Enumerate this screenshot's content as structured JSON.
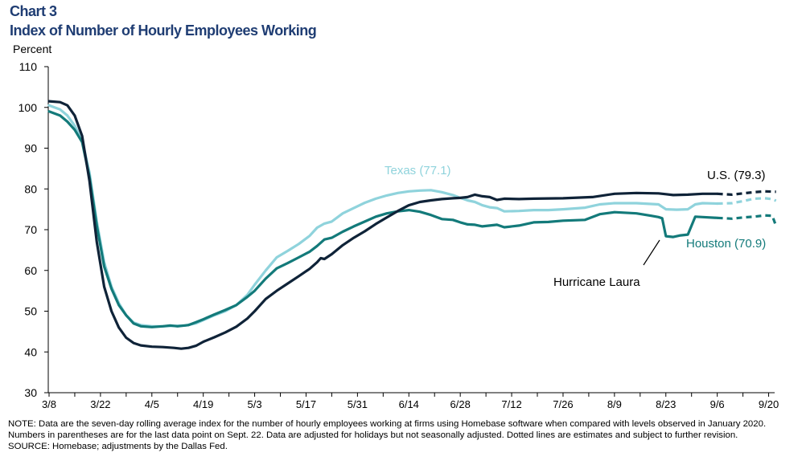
{
  "header": {
    "chart_number": "Chart 3",
    "title": "Index of Number of Hourly Employees Working"
  },
  "colors": {
    "us": "#0f2338",
    "texas": "#8fd3dc",
    "houston": "#137a7a",
    "title": "#1f3d73"
  },
  "footer": {
    "note": "NOTE: Data are the seven-day rolling average  index for the number of hourly employees working at firms using Homebase software when compared with levels observed  in January 2020. Numbers in parentheses are for the last data point on Sept. 22. Data are adjusted for holidays but not seasonally adjusted. Dotted lines are estimates and subject to further  revision.",
    "source": "SOURCE: Homebase;  adjustments by the Dallas Fed."
  },
  "chart_data": {
    "type": "line",
    "title": "Index of Number of Hourly Employees Working",
    "ylabel": "Percent",
    "xlabel": "",
    "ylim": [
      30,
      110
    ],
    "yticks": [
      30,
      40,
      50,
      60,
      70,
      80,
      90,
      100,
      110
    ],
    "x_unit": "day index (0 = 3/8)",
    "xlim": [
      0,
      199
    ],
    "x_tick_labels": [
      "3/8",
      "3/22",
      "4/5",
      "4/19",
      "5/3",
      "5/17",
      "5/31",
      "6/14",
      "6/28",
      "7/12",
      "7/26",
      "8/9",
      "8/23",
      "9/6",
      "9/20"
    ],
    "x_tick_positions": [
      0,
      14,
      28,
      42,
      56,
      70,
      84,
      98,
      112,
      126,
      140,
      154,
      168,
      182,
      196
    ],
    "grid": false,
    "estimate_start_day": 182,
    "annotations": {
      "texas_label": "Texas (77.1)",
      "us_label": "U.S. (79.3)",
      "houston_label": "Houston (70.9)",
      "hurricane_label": "Hurricane Laura",
      "hurricane_day": 168
    },
    "series": [
      {
        "name": "U.S.",
        "label": "U.S. (79.3)",
        "last_value": 79.3,
        "points": [
          [
            0,
            101.5
          ],
          [
            3,
            101.3
          ],
          [
            5,
            100.5
          ],
          [
            7,
            98
          ],
          [
            9,
            93
          ],
          [
            11,
            82
          ],
          [
            13,
            67
          ],
          [
            15,
            56
          ],
          [
            17,
            50
          ],
          [
            19,
            46
          ],
          [
            21,
            43.5
          ],
          [
            23,
            42.2
          ],
          [
            25,
            41.6
          ],
          [
            28,
            41.3
          ],
          [
            31,
            41.2
          ],
          [
            34,
            41.0
          ],
          [
            36,
            40.8
          ],
          [
            38,
            41.0
          ],
          [
            40,
            41.5
          ],
          [
            42,
            42.5
          ],
          [
            45,
            43.6
          ],
          [
            48,
            44.8
          ],
          [
            51,
            46.2
          ],
          [
            54,
            48.2
          ],
          [
            56,
            50
          ],
          [
            59,
            53
          ],
          [
            62,
            55
          ],
          [
            65,
            56.8
          ],
          [
            68,
            58.6
          ],
          [
            71,
            60.4
          ],
          [
            73,
            62.0
          ],
          [
            74,
            63.0
          ],
          [
            75,
            62.8
          ],
          [
            77,
            64.0
          ],
          [
            80,
            66.2
          ],
          [
            83,
            68.0
          ],
          [
            86,
            69.6
          ],
          [
            89,
            71.4
          ],
          [
            92,
            73.0
          ],
          [
            95,
            74.6
          ],
          [
            98,
            76.0
          ],
          [
            101,
            76.8
          ],
          [
            104,
            77.2
          ],
          [
            107,
            77.5
          ],
          [
            110,
            77.7
          ],
          [
            112,
            77.8
          ],
          [
            114,
            78.0
          ],
          [
            116,
            78.6
          ],
          [
            118,
            78.2
          ],
          [
            120,
            78.0
          ],
          [
            122,
            77.3
          ],
          [
            124,
            77.6
          ],
          [
            128,
            77.5
          ],
          [
            132,
            77.6
          ],
          [
            140,
            77.7
          ],
          [
            148,
            78.0
          ],
          [
            154,
            78.8
          ],
          [
            160,
            79.0
          ],
          [
            166,
            78.9
          ],
          [
            168,
            78.7
          ],
          [
            170,
            78.5
          ],
          [
            174,
            78.6
          ],
          [
            178,
            78.8
          ],
          [
            182,
            78.8
          ]
        ],
        "estimate_points": [
          [
            182,
            78.8
          ],
          [
            186,
            78.6
          ],
          [
            189,
            78.9
          ],
          [
            192,
            79.2
          ],
          [
            195,
            79.4
          ],
          [
            198,
            79.3
          ]
        ]
      },
      {
        "name": "Texas",
        "label": "Texas (77.1)",
        "last_value": 77.1,
        "points": [
          [
            0,
            100.5
          ],
          [
            3,
            99.5
          ],
          [
            5,
            98
          ],
          [
            7,
            95.5
          ],
          [
            9,
            92
          ],
          [
            11,
            84
          ],
          [
            13,
            72
          ],
          [
            15,
            62
          ],
          [
            17,
            56
          ],
          [
            19,
            52
          ],
          [
            21,
            49
          ],
          [
            23,
            47.2
          ],
          [
            25,
            46.6
          ],
          [
            28,
            46.3
          ],
          [
            31,
            46.3
          ],
          [
            34,
            46.4
          ],
          [
            37,
            46.5
          ],
          [
            40,
            47.0
          ],
          [
            42,
            47.8
          ],
          [
            45,
            49.0
          ],
          [
            48,
            50.0
          ],
          [
            51,
            51.5
          ],
          [
            54,
            54.0
          ],
          [
            56,
            56.5
          ],
          [
            59,
            60.0
          ],
          [
            62,
            63.2
          ],
          [
            65,
            64.8
          ],
          [
            68,
            66.5
          ],
          [
            71,
            68.5
          ],
          [
            73,
            70.5
          ],
          [
            75,
            71.5
          ],
          [
            77,
            72.0
          ],
          [
            80,
            74.0
          ],
          [
            83,
            75.3
          ],
          [
            86,
            76.6
          ],
          [
            89,
            77.6
          ],
          [
            92,
            78.4
          ],
          [
            95,
            79.0
          ],
          [
            98,
            79.4
          ],
          [
            101,
            79.6
          ],
          [
            104,
            79.7
          ],
          [
            107,
            79.2
          ],
          [
            110,
            78.5
          ],
          [
            112,
            77.8
          ],
          [
            114,
            77.2
          ],
          [
            116,
            76.8
          ],
          [
            118,
            76.0
          ],
          [
            120,
            75.5
          ],
          [
            122,
            75.3
          ],
          [
            124,
            74.5
          ],
          [
            128,
            74.6
          ],
          [
            132,
            74.8
          ],
          [
            136,
            74.8
          ],
          [
            140,
            75.0
          ],
          [
            146,
            75.4
          ],
          [
            150,
            76.2
          ],
          [
            154,
            76.5
          ],
          [
            160,
            76.5
          ],
          [
            166,
            76.2
          ],
          [
            168,
            75.0
          ],
          [
            171,
            74.9
          ],
          [
            174,
            75.0
          ],
          [
            176,
            76.2
          ],
          [
            178,
            76.5
          ],
          [
            182,
            76.4
          ]
        ],
        "estimate_points": [
          [
            182,
            76.4
          ],
          [
            186,
            76.5
          ],
          [
            189,
            77.0
          ],
          [
            192,
            77.6
          ],
          [
            195,
            77.7
          ],
          [
            197,
            77.5
          ],
          [
            198,
            77.1
          ]
        ]
      },
      {
        "name": "Houston",
        "label": "Houston (70.9)",
        "last_value": 70.9,
        "points": [
          [
            0,
            99.0
          ],
          [
            3,
            98.0
          ],
          [
            5,
            96.5
          ],
          [
            7,
            94.5
          ],
          [
            9,
            91.5
          ],
          [
            11,
            83
          ],
          [
            13,
            71
          ],
          [
            15,
            61
          ],
          [
            17,
            55.5
          ],
          [
            19,
            51.5
          ],
          [
            21,
            49
          ],
          [
            23,
            47.0
          ],
          [
            25,
            46.3
          ],
          [
            28,
            46.1
          ],
          [
            31,
            46.3
          ],
          [
            33,
            46.5
          ],
          [
            35,
            46.3
          ],
          [
            38,
            46.6
          ],
          [
            40,
            47.3
          ],
          [
            42,
            48.0
          ],
          [
            45,
            49.2
          ],
          [
            48,
            50.3
          ],
          [
            51,
            51.5
          ],
          [
            54,
            53.5
          ],
          [
            56,
            55.0
          ],
          [
            59,
            58.0
          ],
          [
            62,
            60.5
          ],
          [
            65,
            61.8
          ],
          [
            68,
            63.2
          ],
          [
            71,
            64.6
          ],
          [
            73,
            66.0
          ],
          [
            75,
            67.6
          ],
          [
            77,
            68.0
          ],
          [
            80,
            69.5
          ],
          [
            83,
            70.8
          ],
          [
            86,
            72.0
          ],
          [
            89,
            73.2
          ],
          [
            92,
            74.0
          ],
          [
            95,
            74.5
          ],
          [
            98,
            74.8
          ],
          [
            101,
            74.4
          ],
          [
            104,
            73.6
          ],
          [
            107,
            72.6
          ],
          [
            110,
            72.4
          ],
          [
            112,
            71.8
          ],
          [
            114,
            71.3
          ],
          [
            116,
            71.2
          ],
          [
            118,
            70.8
          ],
          [
            120,
            71.0
          ],
          [
            122,
            71.2
          ],
          [
            124,
            70.6
          ],
          [
            128,
            71.0
          ],
          [
            132,
            71.8
          ],
          [
            136,
            71.9
          ],
          [
            140,
            72.2
          ],
          [
            146,
            72.4
          ],
          [
            150,
            73.8
          ],
          [
            154,
            74.3
          ],
          [
            160,
            74.0
          ],
          [
            164,
            73.4
          ],
          [
            166,
            73.1
          ],
          [
            167,
            72.8
          ],
          [
            168,
            68.4
          ],
          [
            170,
            68.2
          ],
          [
            172,
            68.6
          ],
          [
            174,
            68.8
          ],
          [
            176,
            73.2
          ],
          [
            178,
            73.1
          ],
          [
            182,
            72.9
          ]
        ],
        "estimate_points": [
          [
            182,
            72.9
          ],
          [
            186,
            72.7
          ],
          [
            189,
            73.0
          ],
          [
            192,
            73.2
          ],
          [
            195,
            73.5
          ],
          [
            197,
            73.4
          ],
          [
            198,
            70.9
          ]
        ]
      }
    ]
  }
}
